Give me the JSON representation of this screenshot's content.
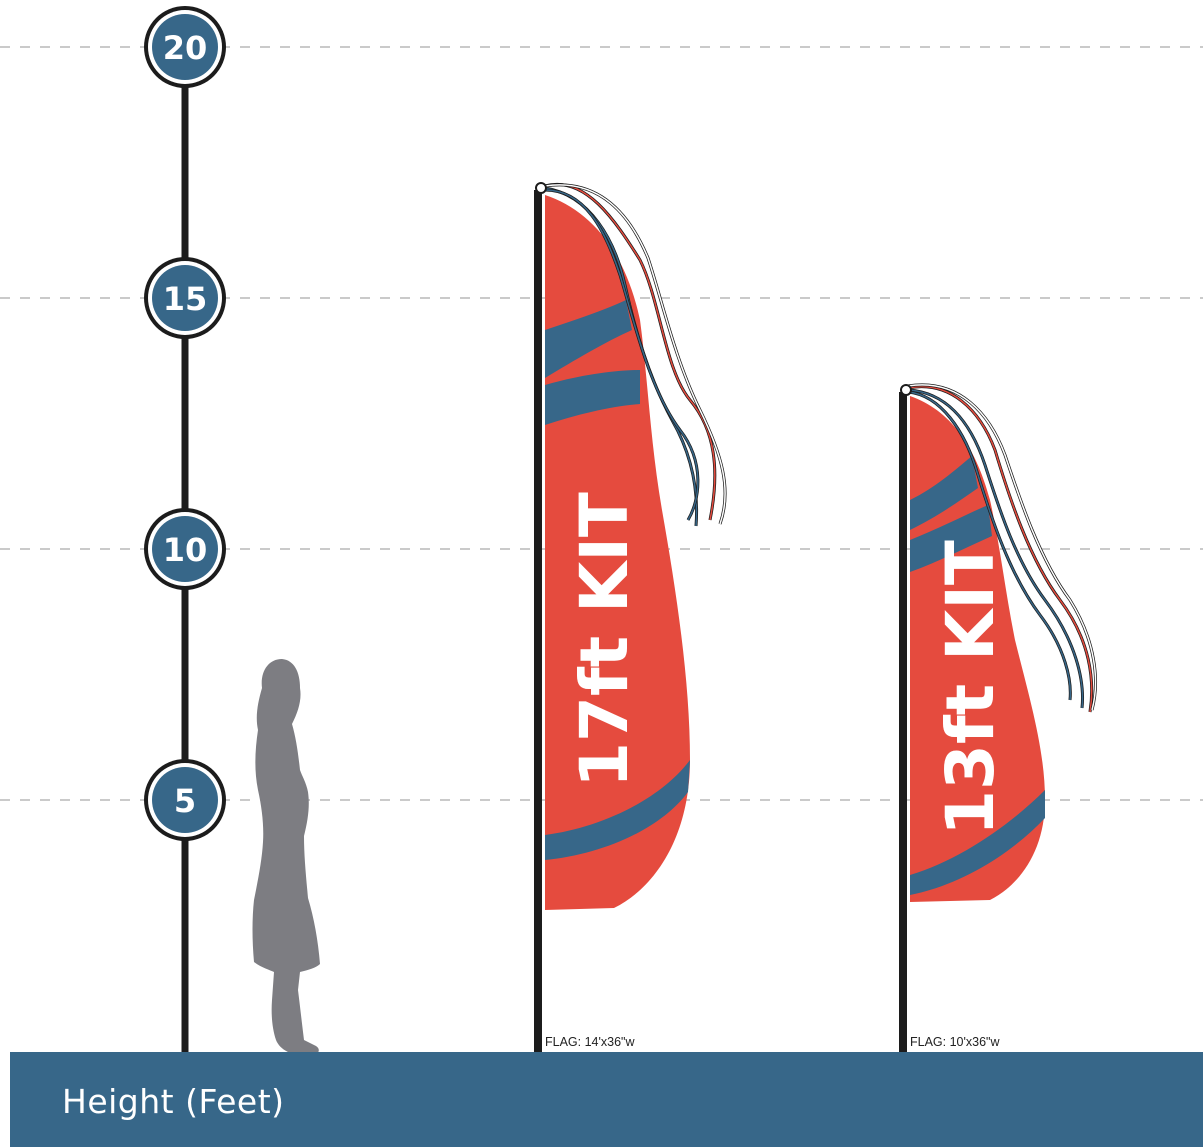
{
  "scale": {
    "ticks": [
      {
        "label": "20",
        "value": 20
      },
      {
        "label": "15",
        "value": 15
      },
      {
        "label": "10",
        "value": 10
      },
      {
        "label": "5",
        "value": 5
      }
    ],
    "axis_label": "Height (Feet)"
  },
  "kits": [
    {
      "label": "17ft KIT",
      "spec": "FLAG: 14'x36\"w"
    },
    {
      "label": "13ft KIT",
      "spec": "FLAG: 10'x36\"w"
    }
  ],
  "colors": {
    "badge": "#376789",
    "flag_red": "#e54b3e",
    "flag_blue": "#376789",
    "pole": "#1c1c1c",
    "silhouette": "#7d7d82",
    "gridline": "#b9b9b9",
    "footer": "#376789"
  }
}
